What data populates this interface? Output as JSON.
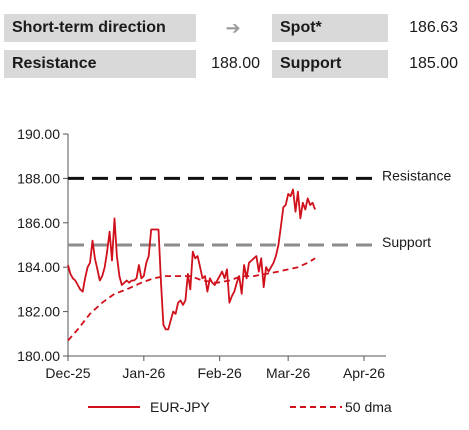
{
  "header": {
    "direction_label": "Short-term direction",
    "direction_icon": "arrow-right-icon",
    "spot_label": "Spot*",
    "spot_value": "186.63",
    "resistance_label": "Resistance",
    "resistance_value": "188.00",
    "support_label": "Support",
    "support_value": "185.00"
  },
  "chart_data": {
    "type": "line",
    "ylim": [
      180,
      190
    ],
    "yticks": [
      "180.00",
      "182.00",
      "184.00",
      "186.00",
      "188.00",
      "190.00"
    ],
    "xlim": [
      "2025-12-01",
      "2026-04-10"
    ],
    "xticks": [
      {
        "label": "Dec-25",
        "date": "2025-12-01"
      },
      {
        "label": "Jan-26",
        "date": "2026-01-01"
      },
      {
        "label": "Feb-26",
        "date": "2026-02-01"
      },
      {
        "label": "Mar-26",
        "date": "2026-03-01"
      },
      {
        "label": "Apr-26",
        "date": "2026-04-01"
      }
    ],
    "grid": false,
    "legend_position": "bottom",
    "hlines": [
      {
        "name": "Resistance",
        "value": 188.0,
        "color": "#111111"
      },
      {
        "name": "Support",
        "value": 185.0,
        "color": "#8c8c8c"
      }
    ],
    "series": [
      {
        "name": "EUR-JPY",
        "style": "solid",
        "color": "#d0101b",
        "points": [
          [
            "2025-12-01",
            184.1
          ],
          [
            "2025-12-02",
            183.7
          ],
          [
            "2025-12-03",
            183.5
          ],
          [
            "2025-12-04",
            183.4
          ],
          [
            "2025-12-05",
            183.2
          ],
          [
            "2025-12-06",
            183.0
          ],
          [
            "2025-12-07",
            182.9
          ],
          [
            "2025-12-08",
            183.5
          ],
          [
            "2025-12-09",
            184.0
          ],
          [
            "2025-12-10",
            184.2
          ],
          [
            "2025-12-11",
            185.2
          ],
          [
            "2025-12-12",
            184.4
          ],
          [
            "2025-12-13",
            183.9
          ],
          [
            "2025-12-14",
            183.4
          ],
          [
            "2025-12-15",
            183.6
          ],
          [
            "2025-12-16",
            184.0
          ],
          [
            "2025-12-17",
            184.7
          ],
          [
            "2025-12-18",
            185.6
          ],
          [
            "2025-12-19",
            184.3
          ],
          [
            "2025-12-20",
            186.2
          ],
          [
            "2025-12-21",
            184.5
          ],
          [
            "2025-12-22",
            183.6
          ],
          [
            "2025-12-23",
            183.2
          ],
          [
            "2025-12-24",
            183.3
          ],
          [
            "2025-12-25",
            183.4
          ],
          [
            "2025-12-26",
            183.3
          ],
          [
            "2025-12-27",
            183.4
          ],
          [
            "2025-12-28",
            183.4
          ],
          [
            "2025-12-29",
            183.5
          ],
          [
            "2025-12-30",
            184.1
          ],
          [
            "2025-12-31",
            183.5
          ],
          [
            "2026-01-01",
            183.6
          ],
          [
            "2026-01-02",
            184.2
          ],
          [
            "2026-01-03",
            184.5
          ],
          [
            "2026-01-04",
            185.7
          ],
          [
            "2026-01-05",
            185.7
          ],
          [
            "2026-01-06",
            185.7
          ],
          [
            "2026-01-07",
            185.7
          ],
          [
            "2026-01-08",
            183.3
          ],
          [
            "2026-01-09",
            181.4
          ],
          [
            "2026-01-10",
            181.2
          ],
          [
            "2026-01-11",
            181.2
          ],
          [
            "2026-01-12",
            181.6
          ],
          [
            "2026-01-13",
            182.0
          ],
          [
            "2026-01-14",
            181.9
          ],
          [
            "2026-01-15",
            182.4
          ],
          [
            "2026-01-16",
            182.5
          ],
          [
            "2026-01-17",
            182.3
          ],
          [
            "2026-01-18",
            182.5
          ],
          [
            "2026-01-19",
            183.7
          ],
          [
            "2026-01-20",
            183.0
          ],
          [
            "2026-01-21",
            184.7
          ],
          [
            "2026-01-22",
            184.4
          ],
          [
            "2026-01-23",
            184.5
          ],
          [
            "2026-01-24",
            184.0
          ],
          [
            "2026-01-25",
            183.5
          ],
          [
            "2026-01-26",
            183.6
          ],
          [
            "2026-01-27",
            182.9
          ],
          [
            "2026-01-28",
            183.5
          ],
          [
            "2026-01-29",
            183.3
          ],
          [
            "2026-01-30",
            183.2
          ],
          [
            "2026-01-31",
            183.4
          ],
          [
            "2026-02-01",
            183.6
          ],
          [
            "2026-02-02",
            183.8
          ],
          [
            "2026-02-03",
            183.5
          ],
          [
            "2026-02-04",
            183.9
          ],
          [
            "2026-02-05",
            182.4
          ],
          [
            "2026-02-06",
            182.7
          ],
          [
            "2026-02-07",
            182.9
          ],
          [
            "2026-02-08",
            183.3
          ],
          [
            "2026-02-09",
            183.6
          ],
          [
            "2026-02-10",
            182.8
          ],
          [
            "2026-02-11",
            184.1
          ],
          [
            "2026-02-12",
            183.5
          ],
          [
            "2026-02-13",
            184.2
          ],
          [
            "2026-02-14",
            184.3
          ],
          [
            "2026-02-15",
            184.4
          ],
          [
            "2026-02-16",
            184.5
          ],
          [
            "2026-02-17",
            183.8
          ],
          [
            "2026-02-18",
            184.4
          ],
          [
            "2026-02-19",
            183.1
          ],
          [
            "2026-02-20",
            184.0
          ],
          [
            "2026-02-21",
            183.8
          ],
          [
            "2026-02-22",
            184.0
          ],
          [
            "2026-02-23",
            184.2
          ],
          [
            "2026-02-24",
            184.5
          ],
          [
            "2026-02-25",
            185.0
          ],
          [
            "2026-02-26",
            185.8
          ],
          [
            "2026-02-27",
            186.7
          ],
          [
            "2026-02-28",
            186.8
          ],
          [
            "2026-03-01",
            187.3
          ],
          [
            "2026-03-02",
            187.2
          ],
          [
            "2026-03-03",
            187.5
          ],
          [
            "2026-03-04",
            186.5
          ],
          [
            "2026-03-05",
            187.4
          ],
          [
            "2026-03-06",
            186.2
          ],
          [
            "2026-03-07",
            186.9
          ],
          [
            "2026-03-08",
            186.6
          ],
          [
            "2026-03-09",
            187.1
          ],
          [
            "2026-03-10",
            186.8
          ],
          [
            "2026-03-11",
            186.9
          ],
          [
            "2026-03-12",
            186.6
          ]
        ]
      },
      {
        "name": "50 dma",
        "style": "dashed",
        "color": "#d0101b",
        "points": [
          [
            "2025-12-01",
            180.7
          ],
          [
            "2025-12-05",
            181.2
          ],
          [
            "2025-12-10",
            181.9
          ],
          [
            "2025-12-15",
            182.4
          ],
          [
            "2025-12-20",
            182.8
          ],
          [
            "2025-12-25",
            183.0
          ],
          [
            "2025-12-31",
            183.3
          ],
          [
            "2026-01-05",
            183.5
          ],
          [
            "2026-01-10",
            183.6
          ],
          [
            "2026-01-15",
            183.6
          ],
          [
            "2026-01-20",
            183.6
          ],
          [
            "2026-01-25",
            183.4
          ],
          [
            "2026-01-31",
            183.3
          ],
          [
            "2026-02-05",
            183.4
          ],
          [
            "2026-02-10",
            183.6
          ],
          [
            "2026-02-15",
            183.6
          ],
          [
            "2026-02-20",
            183.7
          ],
          [
            "2026-02-25",
            183.8
          ],
          [
            "2026-03-01",
            183.9
          ],
          [
            "2026-03-05",
            184.0
          ],
          [
            "2026-03-09",
            184.2
          ],
          [
            "2026-03-12",
            184.4
          ]
        ]
      }
    ]
  }
}
